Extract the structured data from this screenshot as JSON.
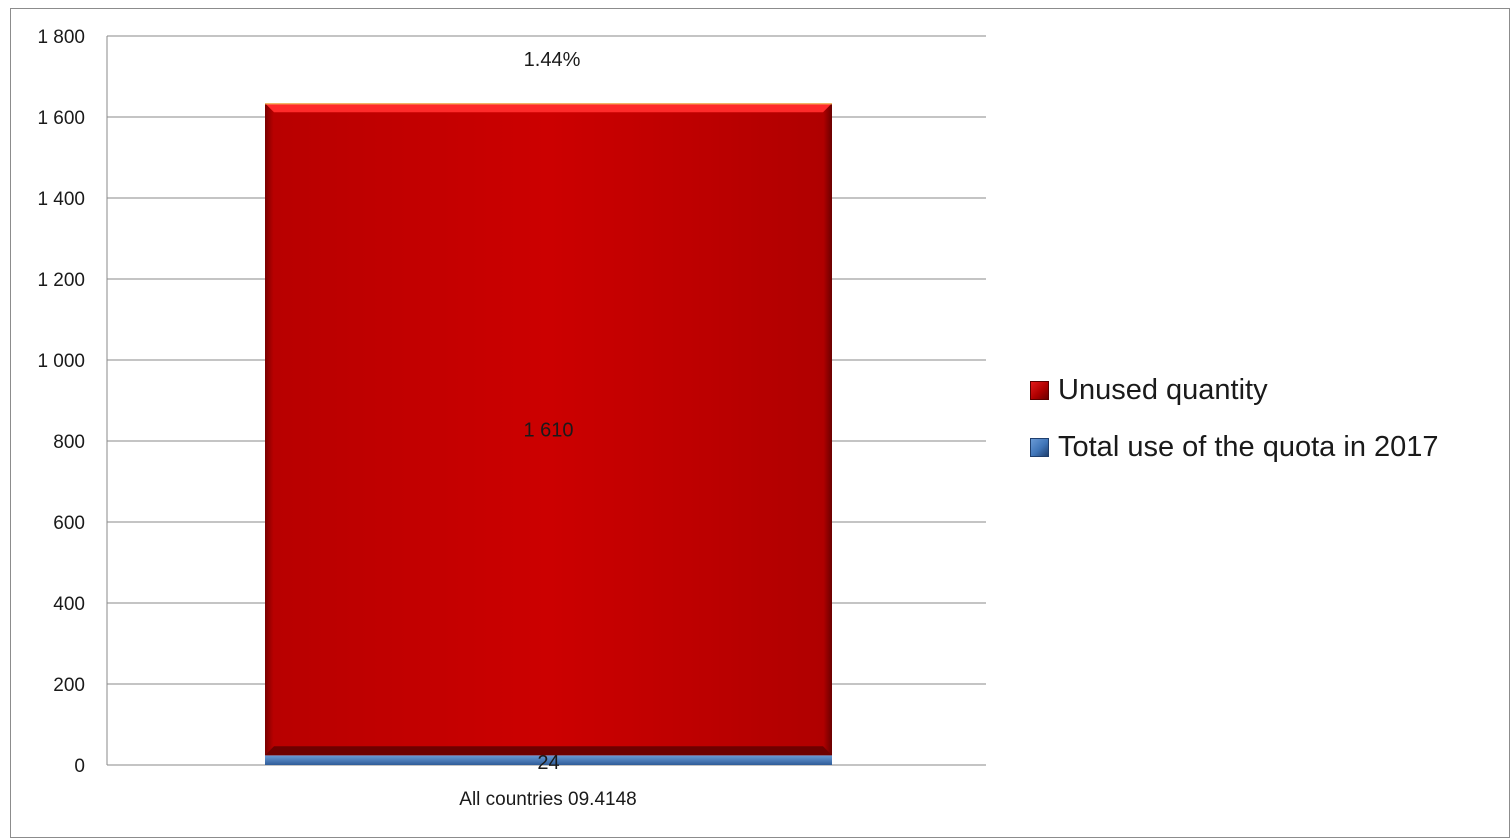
{
  "chart_data": {
    "type": "bar",
    "stacked": true,
    "categories": [
      "All countries 09.4148"
    ],
    "series": [
      {
        "name": "Total use of the quota in 2017",
        "values": [
          24
        ],
        "labels": [
          "24"
        ],
        "color": "#3f74b8"
      },
      {
        "name": "Unused quantity",
        "values": [
          1610
        ],
        "labels": [
          "1 610"
        ],
        "color": "#cc0000"
      }
    ],
    "top_annotation": "1.44%",
    "ylim": [
      0,
      1800
    ],
    "yticks": [
      0,
      200,
      400,
      600,
      800,
      1000,
      1200,
      1400,
      1600,
      1800
    ],
    "ytick_labels": [
      "0",
      "200",
      "400",
      "600",
      "800",
      "1 000",
      "1 200",
      "1 400",
      "1 600",
      "1 800"
    ],
    "grid": true,
    "legend_position": "right",
    "legend": [
      {
        "label": "Unused quantity",
        "color": "#cc0000"
      },
      {
        "label": "Total use of the quota in 2017",
        "color": "#3f74b8"
      }
    ]
  }
}
